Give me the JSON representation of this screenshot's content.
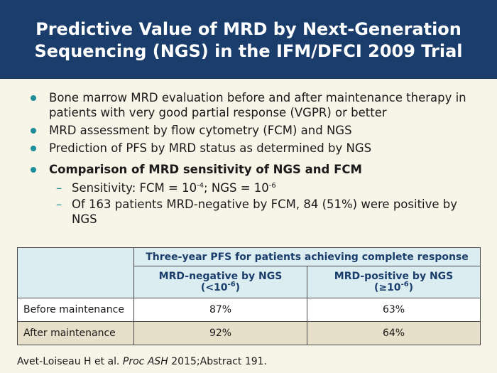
{
  "title": {
    "line1": "Predictive Value of MRD by Next-Generation",
    "line2": "Sequencing (NGS) in the IFM/DFCI 2009 Trial"
  },
  "bullets": [
    "Bone marrow MRD evaluation before and after maintenance therapy in patients with very good partial response (VGPR) or better",
    "MRD assessment by flow cytometry (FCM) and NGS",
    "Prediction of PFS by MRD status as determined by NGS",
    "Comparison of MRD sensitivity of NGS and FCM"
  ],
  "sub_bullets": {
    "sensitivity_prefix": "Sensitivity: FCM = 10",
    "fcm_exp": "-4",
    "sensitivity_mid": "; NGS = 10",
    "ngs_exp": "-6",
    "patients": "Of 163 patients MRD-negative by FCM, 84 (51%) were positive by NGS"
  },
  "table": {
    "group_header": "Three-year PFS for patients achieving complete response",
    "col_neg": {
      "label": "MRD-negative by NGS",
      "threshold_prefix": "(<10",
      "exp": "-6",
      "threshold_suffix": ")"
    },
    "col_pos": {
      "label": "MRD-positive by NGS",
      "threshold_prefix": "(≥10",
      "exp": "-6",
      "threshold_suffix": ")"
    },
    "rows": [
      {
        "label": "Before maintenance",
        "neg": "87%",
        "pos": "63%"
      },
      {
        "label": "After maintenance",
        "neg": "92%",
        "pos": "64%"
      }
    ]
  },
  "source": {
    "authors": "Avet-Loiseau H et al. ",
    "journal": "Proc ASH",
    "rest": " 2015;Abstract 191."
  },
  "colors": {
    "title_bar": "#1a3d6b",
    "bullet_accent": "#1f8e98",
    "table_header_bg": "#dcedf2",
    "row_alt_bg": "#e6dfc9",
    "page_bg": "#f7f4e8"
  }
}
